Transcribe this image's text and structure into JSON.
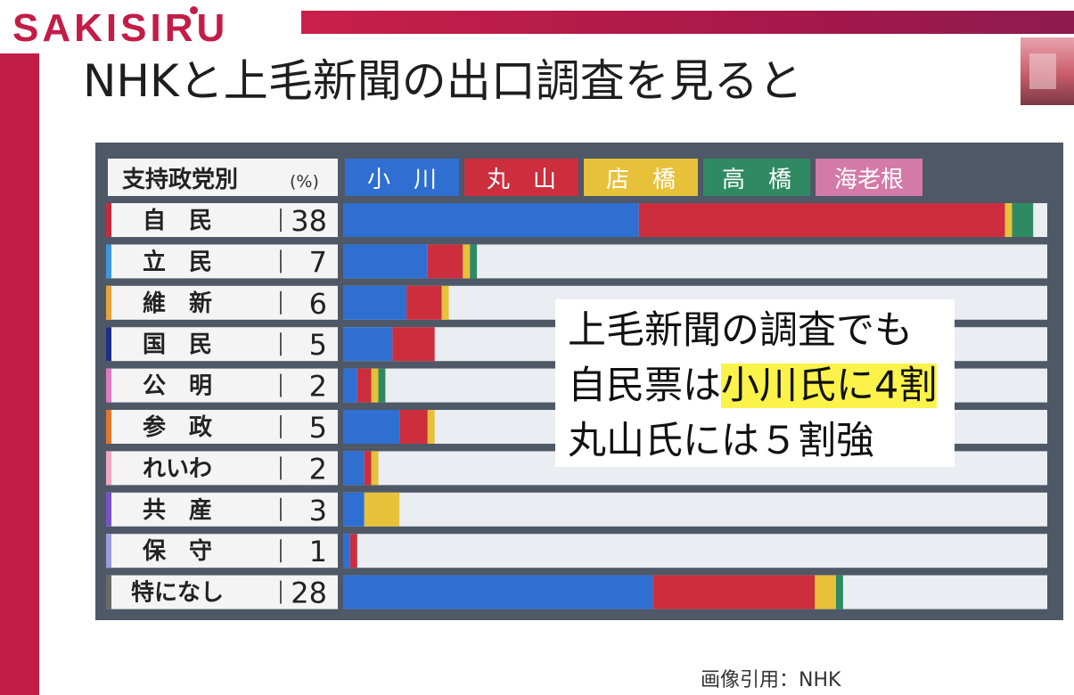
{
  "brand": {
    "logo_text": "SAKISIRU"
  },
  "headline": "NHKと上毛新聞の出口調査を見ると",
  "callout": {
    "line1": "上毛新聞の調査でも",
    "line2_prefix": "自民票は",
    "line2_highlight": "小川氏に4割",
    "line3": "丸山氏には５割強"
  },
  "credit": "画像引用：NHK",
  "chart_data": {
    "type": "bar",
    "stacked": true,
    "orientation": "horizontal",
    "header_label": "支持政党別",
    "unit": "(%)",
    "categories": [
      "自　民",
      "立　民",
      "維　新",
      "国　民",
      "公　明",
      "参　政",
      "れいわ",
      "共　産",
      "保　守",
      "特になし"
    ],
    "support_share": [
      38,
      7,
      6,
      5,
      2,
      5,
      2,
      3,
      1,
      28
    ],
    "series": [
      {
        "name": "小　川",
        "color": "#2e6fd1",
        "values": [
          42,
          12,
          9,
          7,
          2,
          8,
          3,
          3,
          1,
          44
        ]
      },
      {
        "name": "丸　山",
        "color": "#cc2e3e",
        "values": [
          52,
          5,
          5,
          6,
          2,
          4,
          1,
          0,
          1,
          23
        ]
      },
      {
        "name": "店　橋",
        "color": "#e7c13a",
        "values": [
          1,
          1,
          1,
          0,
          1,
          1,
          1,
          5,
          0,
          3
        ]
      },
      {
        "name": "高　橋",
        "color": "#2f8a64",
        "values": [
          3,
          1,
          0,
          0,
          1,
          0,
          0,
          0,
          0,
          1
        ]
      },
      {
        "name": "海老根",
        "color": "#d47aa8",
        "values": [
          0,
          0,
          0,
          0,
          0,
          0,
          0,
          0,
          0,
          0
        ]
      }
    ],
    "party_colors": [
      "#c8283c",
      "#3a98e0",
      "#e9a23a",
      "#1b2e8c",
      "#e07ac0",
      "#e3762d",
      "#f0a6c0",
      "#7a52c8",
      "#9a9ae0",
      "#6a6a6a"
    ],
    "xlim": [
      0,
      100
    ],
    "legend_position": "top"
  }
}
